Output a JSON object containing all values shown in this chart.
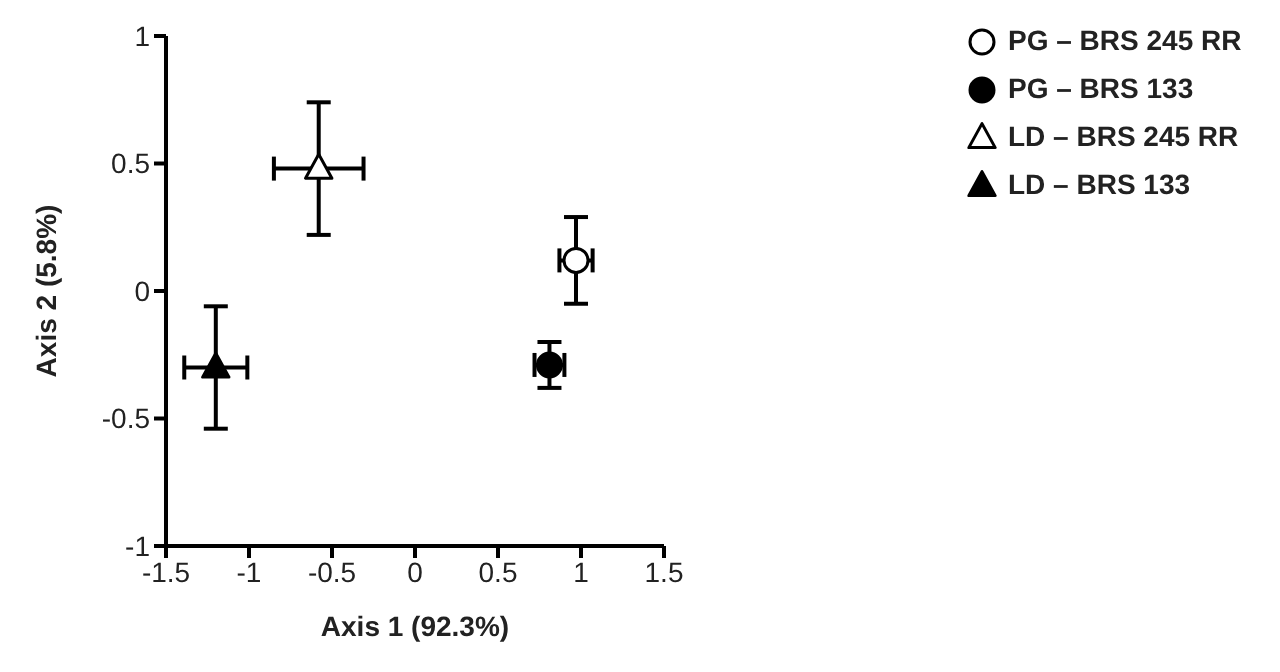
{
  "chart_data": {
    "type": "scatter",
    "xlabel": "Axis 1 (92.3%)",
    "ylabel": "Axis 2 (5.8%)",
    "xlim": [
      -1.5,
      1.5
    ],
    "xticks": [
      -1.5,
      -1,
      -0.5,
      0,
      0.5,
      1,
      1.5
    ],
    "ylim": [
      -1,
      1
    ],
    "yticks": [
      -1,
      -0.5,
      0,
      0.5,
      1
    ],
    "grid": false,
    "legend": "top right",
    "series": [
      {
        "name": "PG – BRS 245 RR",
        "color": "#ffffff",
        "marker": "circle",
        "x": [
          0.97
        ],
        "values": [
          0.12
        ],
        "xerrors": [
          0.1
        ],
        "errors": [
          0.17
        ]
      },
      {
        "name": "PG – BRS 133",
        "color": "#000000",
        "marker": "circle",
        "x": [
          0.81
        ],
        "values": [
          -0.29
        ],
        "xerrors": [
          0.09
        ],
        "errors": [
          0.09
        ]
      },
      {
        "name": "LD – BRS 245 RR",
        "color": "#ffffff",
        "marker": "triangle",
        "x": [
          -0.58
        ],
        "values": [
          0.48
        ],
        "xerrors": [
          0.27
        ],
        "errors": [
          0.26
        ]
      },
      {
        "name": "LD – BRS 133",
        "color": "#000000",
        "marker": "triangle",
        "x": [
          -1.2
        ],
        "values": [
          -0.3
        ],
        "xerrors": [
          0.19
        ],
        "errors": [
          0.24
        ]
      }
    ]
  }
}
